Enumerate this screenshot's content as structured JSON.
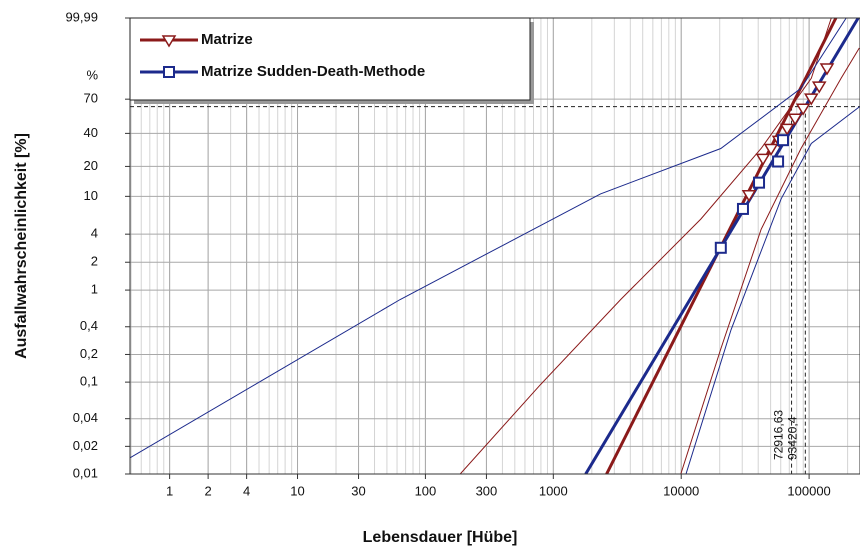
{
  "chart_data": {
    "type": "weibull",
    "x_label": "Lebensdauer [Hübe]",
    "y_label": "Ausfallwahrscheinlichkeit [%]",
    "y_unit": "%",
    "xscale": "log",
    "yscale": "weibull",
    "xlim": [
      0.49,
      250000
    ],
    "ylim": [
      0.01,
      99.99
    ],
    "xticks": [
      1,
      2,
      4,
      10,
      30,
      100,
      300,
      1000,
      10000,
      100000
    ],
    "yticks": [
      {
        "value": 0.01,
        "label": "0,01"
      },
      {
        "value": 0.02,
        "label": "0,02"
      },
      {
        "value": 0.04,
        "label": "0,04"
      },
      {
        "value": 0.1,
        "label": "0,1"
      },
      {
        "value": 0.2,
        "label": "0,2"
      },
      {
        "value": 0.4,
        "label": "0,4"
      },
      1,
      2,
      4,
      10,
      20,
      40,
      70,
      {
        "value": 99.99,
        "label": "99,99"
      }
    ],
    "grid": true,
    "legend": "upper left",
    "series": [
      {
        "name": "Matrize",
        "color": "#8b1a1a",
        "marker": "triangle-down",
        "x": [
          33900,
          43600,
          50400,
          58200,
          67300,
          77700,
          89800,
          104000,
          120000,
          138000
        ],
        "values": [
          10.4,
          23.9,
          29.5,
          34.9,
          44,
          52.6,
          61.7,
          70.9,
          81.2,
          92.8
        ],
        "fit": {
          "x": [
            2610,
            162000
          ],
          "values": [
            0.01,
            99.99
          ]
        },
        "bounds": [
          {
            "x": [
              187,
              794,
              3365,
              14250,
              42100,
              104000,
              149000
            ],
            "values": [
              0.01,
              0.094,
              0.79,
              5.8,
              29.5,
              86.9,
              99.99
            ]
          },
          {
            "x": [
              9930,
              20400,
              42100,
              86500,
              178000,
              247000
            ],
            "values": [
              0.01,
              0.23,
              4.5,
              29.5,
              86.9,
              98.7
            ]
          }
        ]
      },
      {
        "name": "Matrize Sudden-Death-Methode",
        "color": "#1c2a8c",
        "marker": "square",
        "x": [
          20400,
          30400,
          40600,
          57200,
          62500
        ],
        "values": [
          2.86,
          7.4,
          13.8,
          22.3,
          35
        ],
        "fit": {
          "x": [
            1790,
            242000
          ],
          "values": [
            0.01,
            99.99
          ]
        },
        "bounds": [
          {
            "x": [
              0.49,
              63.5,
              2340,
              20400,
              86500,
              195000
            ],
            "values": [
              0.015,
              0.79,
              10.6,
              29.5,
              79.4,
              99.99
            ]
          },
          {
            "x": [
              10900,
              24500,
              60400,
              104000,
              250000
            ],
            "values": [
              0.01,
              0.37,
              9.4,
              32.7,
              63.4
            ]
          }
        ]
      }
    ],
    "reference_y": 63.2,
    "references": [
      {
        "x": 72916.63,
        "label": "72916,63",
        "color": "#8b1a1a"
      },
      {
        "x": 93420.4,
        "label": "93420,4",
        "color": "#1c2a8c"
      }
    ]
  }
}
